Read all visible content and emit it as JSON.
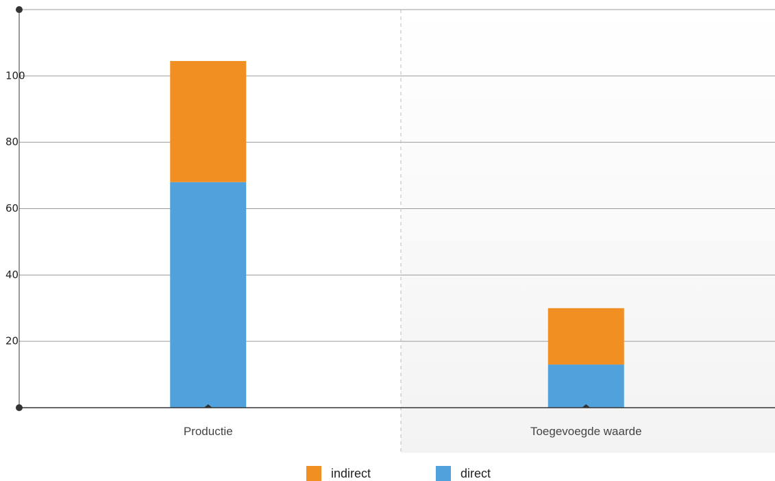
{
  "chart_data": {
    "type": "bar",
    "stacked": true,
    "categories": [
      "Productie",
      "Toegevoegde waarde"
    ],
    "series": [
      {
        "name": "direct",
        "values": [
          68,
          13
        ],
        "color": "#51a2dc"
      },
      {
        "name": "indirect",
        "values": [
          36.5,
          17
        ],
        "color": "#f28f22"
      }
    ],
    "legend_order": [
      "indirect",
      "direct"
    ],
    "yticks": [
      20,
      40,
      60,
      80,
      100
    ],
    "ylim": [
      0,
      120
    ],
    "grid": true,
    "legend_position": "bottom-center"
  }
}
